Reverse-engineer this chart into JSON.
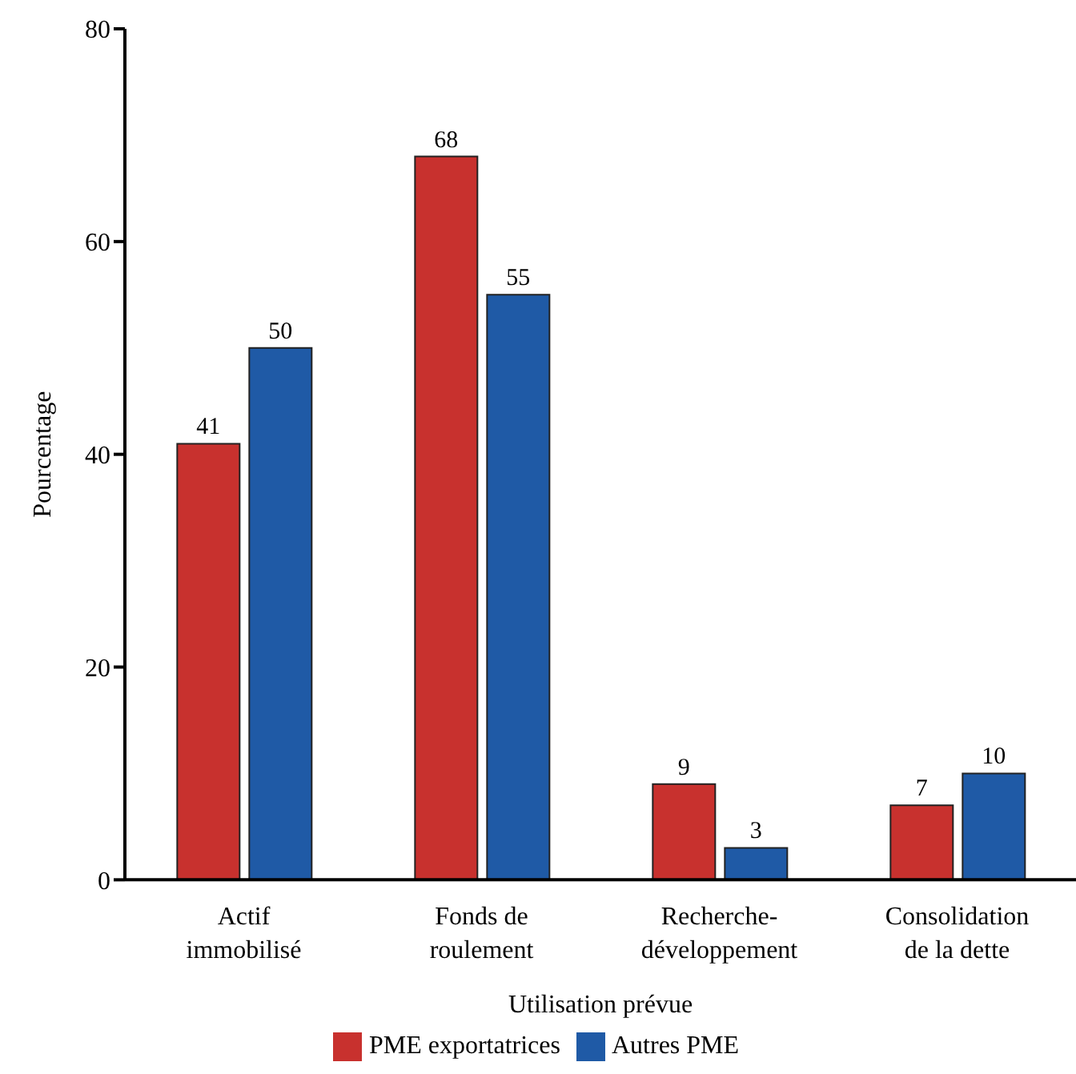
{
  "chart_data": {
    "type": "bar",
    "xlabel": "Utilisation prévue",
    "ylabel": "Pourcentage",
    "categories": [
      "Actif immobilisé",
      "Fonds de roulement",
      "Recherche-développement",
      "Consolidation de la dette"
    ],
    "series": [
      {
        "name": "PME exportatrices",
        "color": "#c8312e",
        "values": [
          41,
          68,
          9,
          7
        ]
      },
      {
        "name": "Autres PME",
        "color": "#1f5aa6",
        "values": [
          50,
          55,
          3,
          10
        ]
      }
    ],
    "ylim": [
      0,
      80
    ],
    "yticks": [
      0,
      20,
      40,
      60,
      80
    ],
    "grid": false,
    "legend": "bottom",
    "data_labels": true
  }
}
